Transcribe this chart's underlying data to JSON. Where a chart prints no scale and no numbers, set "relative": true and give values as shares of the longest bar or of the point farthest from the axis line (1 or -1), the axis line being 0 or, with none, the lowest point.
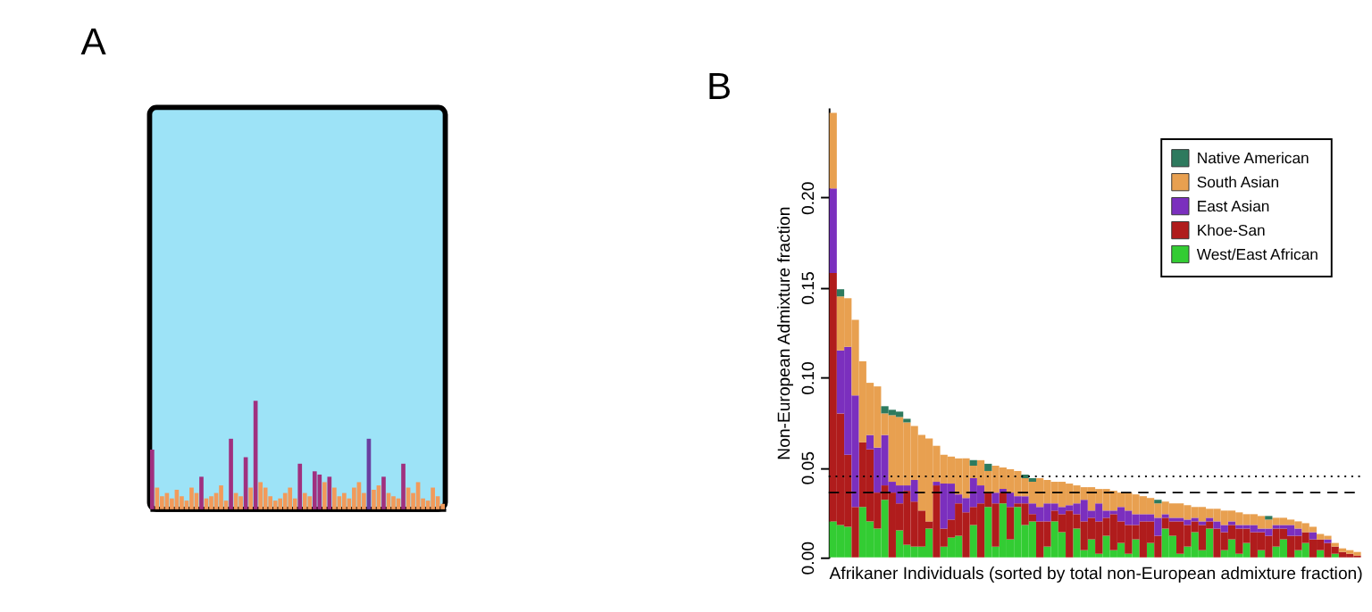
{
  "chart_data": [
    {
      "type": "bar",
      "title": "A",
      "relative": true,
      "categories": [
        null,
        null,
        null,
        null,
        null,
        null,
        null,
        null,
        null,
        null,
        null,
        null,
        null,
        null,
        null,
        null,
        null,
        null,
        null,
        null,
        null,
        null,
        null,
        null,
        null,
        null,
        null,
        null,
        null,
        null,
        null,
        null,
        null,
        null,
        null,
        null,
        null,
        null,
        null,
        null,
        null,
        null,
        null,
        null,
        null,
        null,
        null,
        null,
        null,
        null,
        null,
        null,
        null,
        null,
        null,
        null,
        null,
        null,
        null,
        null
      ],
      "values": [
        0.55,
        0.2,
        0.12,
        0.15,
        0.1,
        0.18,
        0.12,
        0.08,
        0.2,
        0.15,
        0.3,
        0.1,
        0.12,
        0.15,
        0.22,
        0.08,
        0.65,
        0.15,
        0.12,
        0.48,
        0.2,
        1.0,
        0.25,
        0.2,
        0.12,
        0.08,
        0.1,
        0.15,
        0.2,
        0.1,
        0.42,
        0.15,
        0.12,
        0.35,
        0.32,
        0.25,
        0.3,
        0.2,
        0.12,
        0.15,
        0.1,
        0.2,
        0.25,
        0.15,
        0.65,
        0.18,
        0.22,
        0.3,
        0.15,
        0.12,
        0.1,
        0.42,
        0.2,
        0.15,
        0.25,
        0.1,
        0.08,
        0.2,
        0.12,
        0.05
      ],
      "colors": [
        "#a0307f",
        "#f29a5a",
        "#f29a5a",
        "#f29a5a",
        "#f29a5a",
        "#f29a5a",
        "#f29a5a",
        "#f29a5a",
        "#f29a5a",
        "#f29a5a",
        "#a0307f",
        "#f29a5a",
        "#f29a5a",
        "#f29a5a",
        "#f29a5a",
        "#f29a5a",
        "#a0307f",
        "#f29a5a",
        "#f29a5a",
        "#a0307f",
        "#f29a5a",
        "#a0307f",
        "#f29a5a",
        "#f29a5a",
        "#f29a5a",
        "#f29a5a",
        "#f29a5a",
        "#f29a5a",
        "#f29a5a",
        "#f29a5a",
        "#a0307f",
        "#f29a5a",
        "#f29a5a",
        "#a0307f",
        "#a0307f",
        "#f29a5a",
        "#a0307f",
        "#f29a5a",
        "#f29a5a",
        "#f29a5a",
        "#f29a5a",
        "#f29a5a",
        "#f29a5a",
        "#f29a5a",
        "#6a3fa0",
        "#f29a5a",
        "#f29a5a",
        "#a0307f",
        "#f29a5a",
        "#f29a5a",
        "#f29a5a",
        "#a0307f",
        "#f29a5a",
        "#f29a5a",
        "#f29a5a",
        "#f29a5a",
        "#f29a5a",
        "#f29a5a",
        "#f29a5a",
        "#f29a5a"
      ]
    },
    {
      "type": "bar",
      "title": "B",
      "stacked": true,
      "tick_labels": "y",
      "legend": "top right",
      "xlabel": "Afrikaner Individuals (sorted by total non-European admixture fraction)",
      "ylabel": "Non-European Admixture fraction",
      "ylim": [
        0,
        0.25
      ],
      "yticks": [
        {
          "value": 0,
          "label": "0.00"
        },
        {
          "value": 0.05,
          "label": "0.05"
        },
        {
          "value": 0.1,
          "label": "0.10"
        },
        {
          "value": 0.15,
          "label": "0.15"
        },
        {
          "value": 0.2,
          "label": "0.20"
        }
      ],
      "ref_lines": [
        {
          "axis": "y",
          "value": 0.045,
          "line_style": "dotted",
          "color": "#000000"
        },
        {
          "axis": "y",
          "value": 0.036,
          "line_style": "dashed",
          "color": "#000000"
        }
      ],
      "categories": [
        null,
        null,
        null,
        null,
        null,
        null,
        null,
        null,
        null,
        null,
        null,
        null,
        null,
        null,
        null,
        null,
        null,
        null,
        null,
        null,
        null,
        null,
        null,
        null,
        null,
        null,
        null,
        null,
        null,
        null,
        null,
        null,
        null,
        null,
        null,
        null,
        null,
        null,
        null,
        null,
        null,
        null,
        null,
        null,
        null,
        null,
        null,
        null,
        null,
        null,
        null,
        null,
        null,
        null,
        null,
        null,
        null,
        null,
        null,
        null,
        null,
        null,
        null,
        null,
        null,
        null,
        null,
        null,
        null,
        null,
        null,
        null
      ],
      "series": [
        {
          "name": "West/East African",
          "color": "#33cc33",
          "values": [
            0.02,
            0.018,
            0.017,
            0.0,
            0.028,
            0.02,
            0.016,
            0.032,
            0.0,
            0.015,
            0.007,
            0.006,
            0.006,
            0.016,
            0.0,
            0.006,
            0.011,
            0.012,
            0.0,
            0.018,
            0.0,
            0.028,
            0.006,
            0.03,
            0.01,
            0.028,
            0.018,
            0.02,
            0.0,
            0.006,
            0.02,
            0.014,
            0.0,
            0.016,
            0.004,
            0.01,
            0.002,
            0.012,
            0.004,
            0.008,
            0.002,
            0.01,
            0.0,
            0.008,
            0.0,
            0.016,
            0.012,
            0.002,
            0.006,
            0.014,
            0.004,
            0.016,
            0.0,
            0.004,
            0.01,
            0.002,
            0.008,
            0.0,
            0.004,
            0.0,
            0.006,
            0.01,
            0.0,
            0.004,
            0.008,
            0.0,
            0.004,
            0.0,
            0.002,
            0.0,
            0.0,
            0.0
          ]
        },
        {
          "name": "Khoe-San",
          "color": "#b01c1c",
          "values": [
            0.138,
            0.062,
            0.04,
            0.028,
            0.036,
            0.04,
            0.02,
            0.008,
            0.036,
            0.015,
            0.03,
            0.025,
            0.02,
            0.004,
            0.04,
            0.01,
            0.01,
            0.018,
            0.025,
            0.01,
            0.03,
            0.008,
            0.024,
            0.006,
            0.018,
            0.002,
            0.012,
            0.004,
            0.02,
            0.014,
            0.006,
            0.01,
            0.026,
            0.008,
            0.016,
            0.012,
            0.018,
            0.01,
            0.02,
            0.012,
            0.016,
            0.008,
            0.02,
            0.012,
            0.012,
            0.006,
            0.008,
            0.018,
            0.012,
            0.006,
            0.014,
            0.004,
            0.016,
            0.01,
            0.008,
            0.014,
            0.008,
            0.014,
            0.01,
            0.012,
            0.01,
            0.006,
            0.012,
            0.008,
            0.006,
            0.01,
            0.006,
            0.008,
            0.004,
            0.003,
            0.002,
            0.001
          ]
        },
        {
          "name": "East Asian",
          "color": "#7b2fbe",
          "values": [
            0.047,
            0.035,
            0.06,
            0.062,
            0.0,
            0.008,
            0.025,
            0.028,
            0.006,
            0.01,
            0.003,
            0.012,
            0.0,
            0.0,
            0.002,
            0.025,
            0.02,
            0.005,
            0.008,
            0.016,
            0.01,
            0.0,
            0.006,
            0.002,
            0.008,
            0.004,
            0.004,
            0.006,
            0.008,
            0.01,
            0.004,
            0.004,
            0.003,
            0.006,
            0.012,
            0.004,
            0.01,
            0.004,
            0.002,
            0.008,
            0.008,
            0.006,
            0.004,
            0.004,
            0.01,
            0.002,
            0.002,
            0.002,
            0.003,
            0.002,
            0.002,
            0.002,
            0.004,
            0.004,
            0.002,
            0.002,
            0.002,
            0.004,
            0.002,
            0.004,
            0.002,
            0.002,
            0.006,
            0.004,
            0.0,
            0.004,
            0.0,
            0.002,
            0.0,
            0.0,
            0.0,
            0.0
          ]
        },
        {
          "name": "South Asian",
          "color": "#e8a050",
          "values": [
            0.042,
            0.03,
            0.027,
            0.042,
            0.045,
            0.029,
            0.034,
            0.012,
            0.037,
            0.038,
            0.035,
            0.03,
            0.042,
            0.046,
            0.02,
            0.016,
            0.015,
            0.02,
            0.022,
            0.007,
            0.014,
            0.012,
            0.015,
            0.012,
            0.013,
            0.014,
            0.01,
            0.012,
            0.016,
            0.013,
            0.012,
            0.014,
            0.012,
            0.01,
            0.007,
            0.013,
            0.008,
            0.012,
            0.011,
            0.008,
            0.01,
            0.011,
            0.01,
            0.009,
            0.008,
            0.007,
            0.008,
            0.008,
            0.008,
            0.006,
            0.008,
            0.005,
            0.007,
            0.008,
            0.006,
            0.007,
            0.006,
            0.006,
            0.007,
            0.005,
            0.004,
            0.004,
            0.003,
            0.004,
            0.005,
            0.003,
            0.003,
            0.002,
            0.002,
            0.002,
            0.002,
            0.002
          ]
        },
        {
          "name": "Native American",
          "color": "#2e7a5e",
          "values": [
            0,
            0.004,
            0,
            0,
            0,
            0,
            0,
            0.004,
            0.003,
            0.003,
            0.002,
            0,
            0,
            0,
            0,
            0,
            0,
            0,
            0,
            0.003,
            0,
            0.004,
            0,
            0,
            0,
            0,
            0.002,
            0.002,
            0,
            0,
            0,
            0,
            0,
            0,
            0,
            0,
            0,
            0,
            0,
            0,
            0,
            0,
            0,
            0,
            0.002,
            0,
            0,
            0,
            0,
            0,
            0,
            0,
            0,
            0,
            0,
            0,
            0,
            0,
            0,
            0.002,
            0,
            0,
            0,
            0,
            0,
            0,
            0,
            0,
            0,
            0,
            0,
            0
          ]
        }
      ]
    }
  ]
}
